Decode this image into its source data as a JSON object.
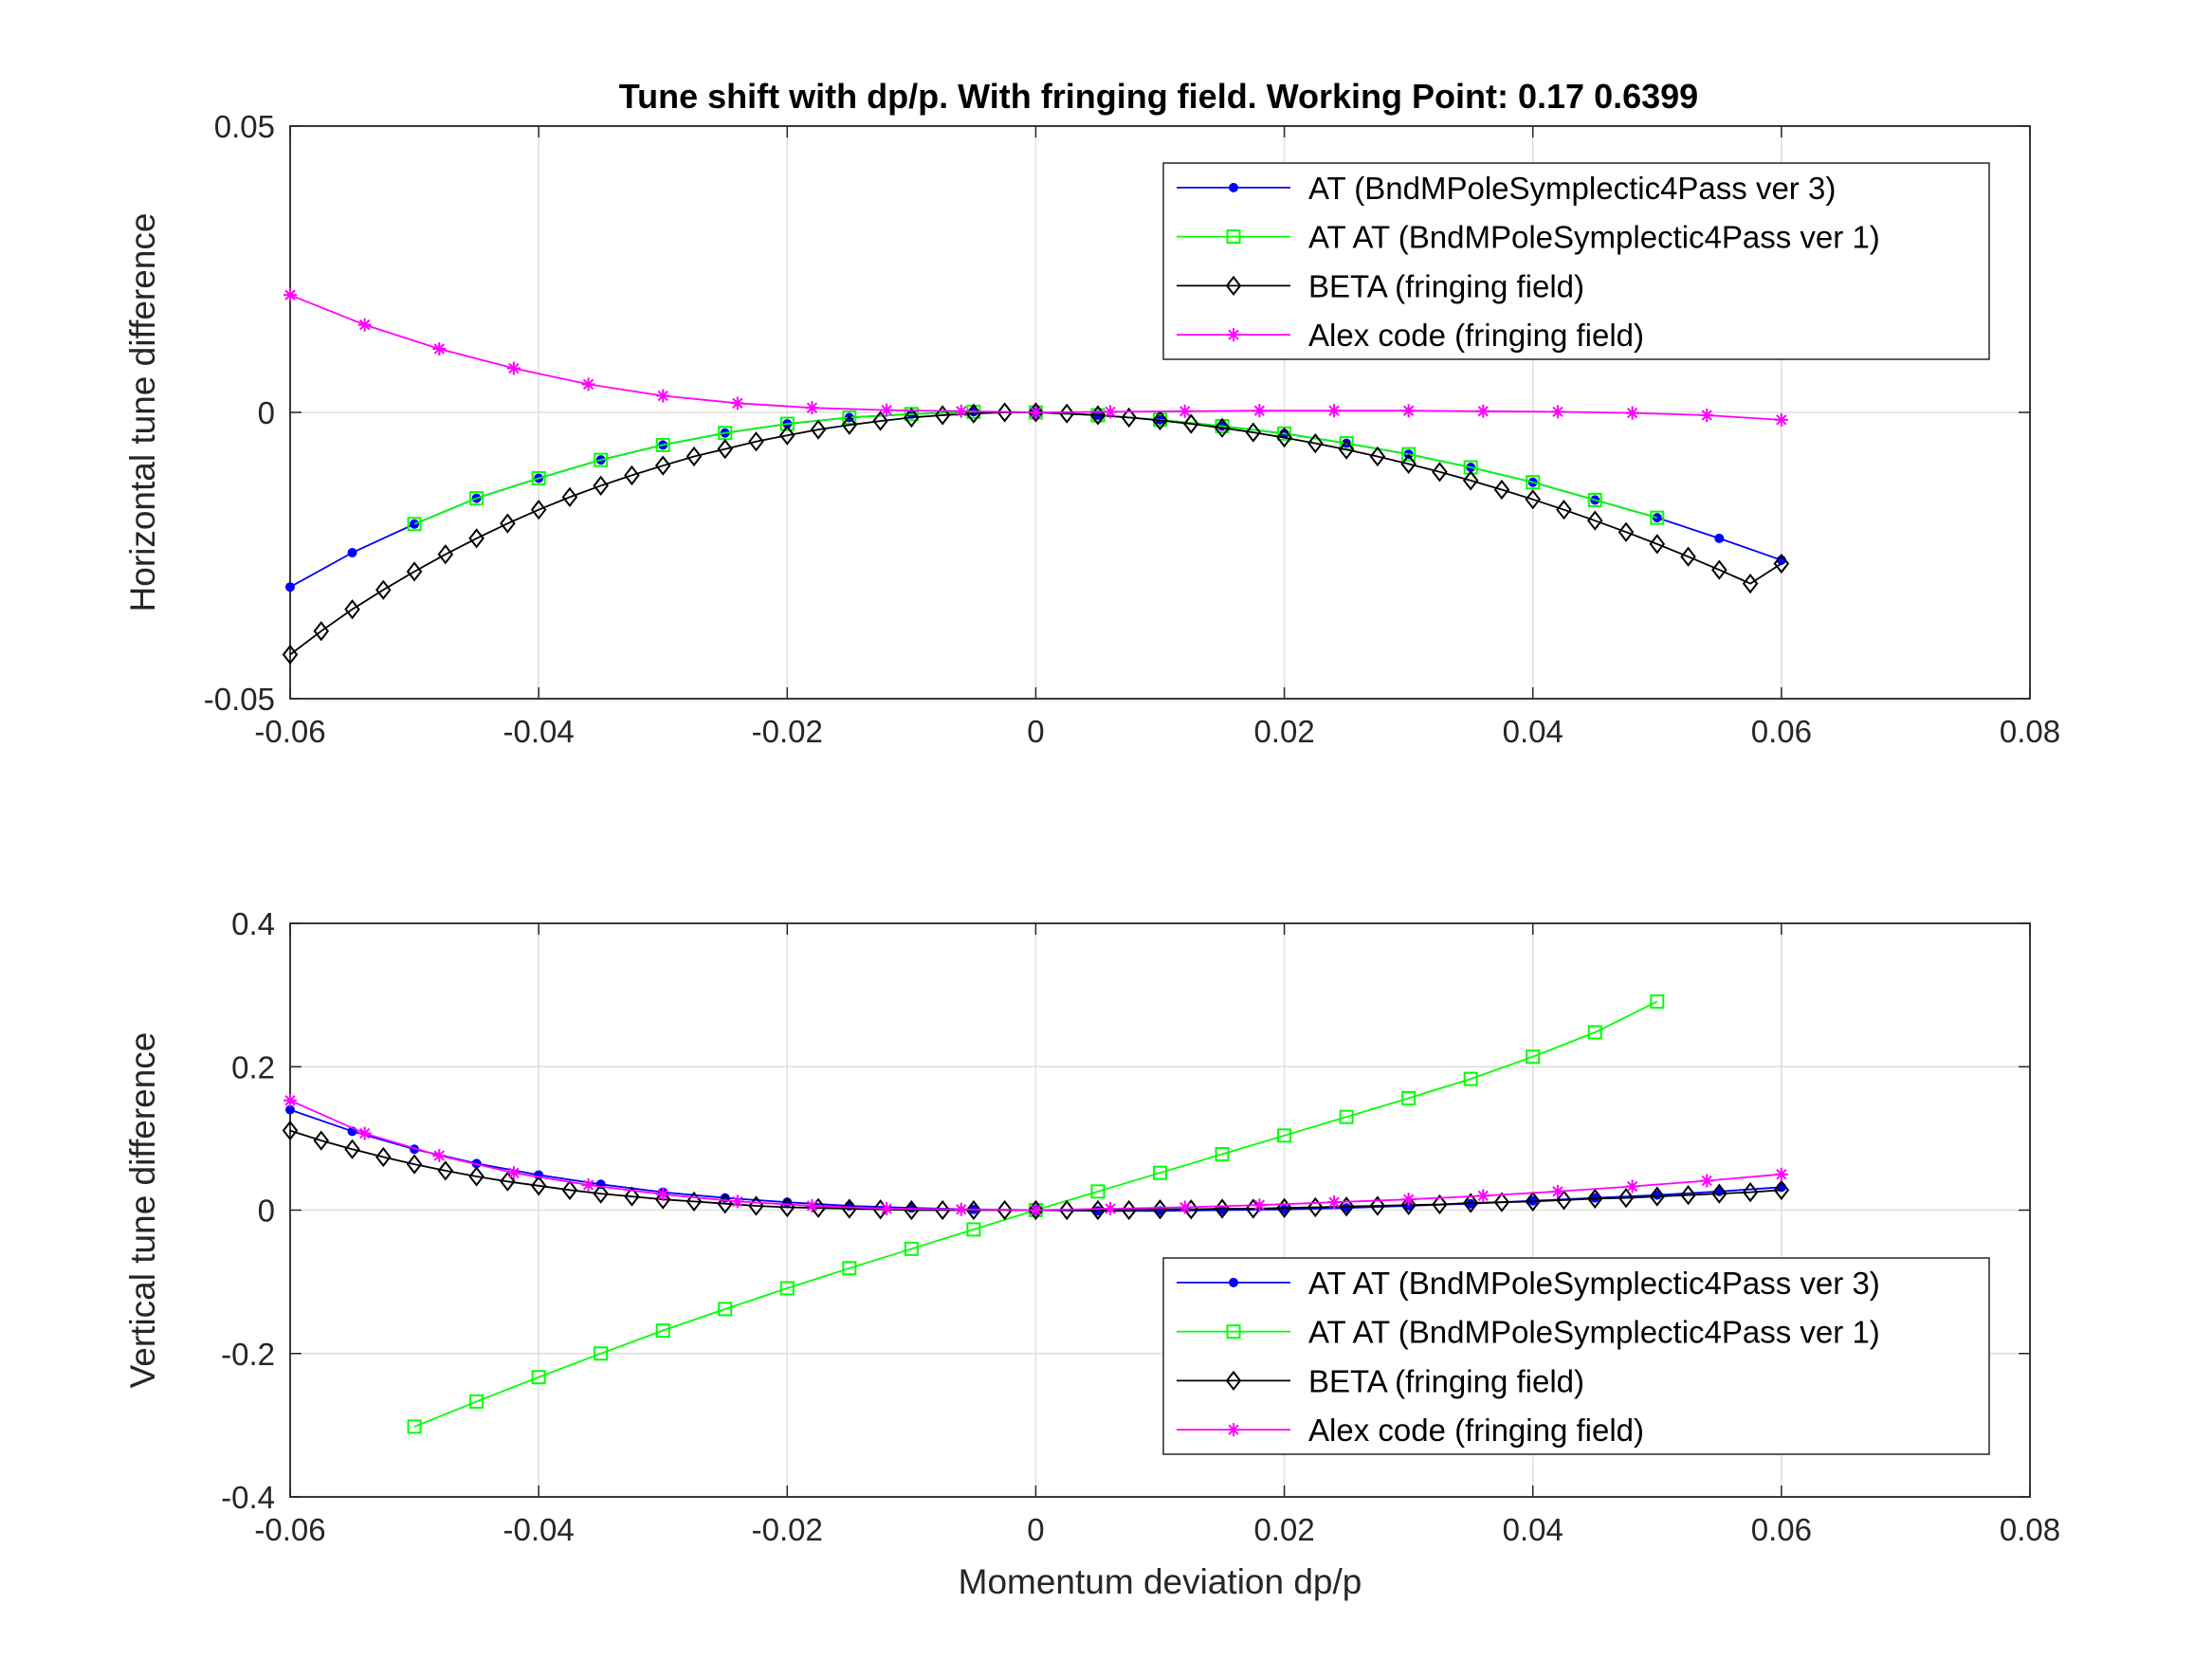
{
  "figure": {
    "title": "Tune shift with dp/p. With fringing field.  Working Point: 0.17       0.6399"
  },
  "chart_data": [
    {
      "type": "line",
      "xlabel": "",
      "ylabel": "Horizontal tune difference",
      "xlim": [
        -0.06,
        0.08
      ],
      "ylim": [
        -0.05,
        0.05
      ],
      "xticks": [
        "-0.06",
        "-0.04",
        "-0.02",
        "0",
        "0.02",
        "0.04",
        "0.06",
        "0.08"
      ],
      "yticks": [
        "-0.05",
        "0",
        "0.05"
      ],
      "grid": true,
      "legend_position": "top-right",
      "series": [
        {
          "name": "AT (BndMPoleSymplectic4Pass ver 3)",
          "color": "#0000ff",
          "marker": "dot",
          "x": [
            -0.06,
            -0.055,
            -0.05,
            -0.045,
            -0.04,
            -0.035,
            -0.03,
            -0.025,
            -0.02,
            -0.015,
            -0.01,
            -0.005,
            0,
            0.005,
            0.01,
            0.015,
            0.02,
            0.025,
            0.03,
            0.035,
            0.04,
            0.045,
            0.05,
            0.055,
            0.06
          ],
          "y": [
            -0.0305,
            -0.0245,
            -0.0195,
            -0.015,
            -0.0115,
            -0.0083,
            -0.0057,
            -0.0036,
            -0.002,
            -0.0009,
            -0.0003,
            0.0001,
            0,
            -0.0005,
            -0.0013,
            -0.0024,
            -0.0037,
            -0.0054,
            -0.0073,
            -0.0096,
            -0.0122,
            -0.0153,
            -0.0184,
            -0.022,
            -0.0258
          ]
        },
        {
          "name": "AT AT (BndMPoleSymplectic4Pass ver 1)",
          "color": "#00ff00",
          "marker": "square",
          "x": [
            -0.05,
            -0.045,
            -0.04,
            -0.035,
            -0.03,
            -0.025,
            -0.02,
            -0.015,
            -0.01,
            -0.005,
            0,
            0.005,
            0.01,
            0.015,
            0.02,
            0.025,
            0.03,
            0.035,
            0.04,
            0.045,
            0.05
          ],
          "y": [
            -0.0195,
            -0.015,
            -0.0115,
            -0.0083,
            -0.0057,
            -0.0036,
            -0.002,
            -0.0009,
            -0.0003,
            0.0001,
            0,
            -0.0005,
            -0.0013,
            -0.0024,
            -0.0037,
            -0.0054,
            -0.0073,
            -0.0096,
            -0.0122,
            -0.0153,
            -0.0184
          ]
        },
        {
          "name": "BETA (fringing field)",
          "color": "#000000",
          "marker": "diamond",
          "x": [
            -0.06,
            -0.0575,
            -0.055,
            -0.0525,
            -0.05,
            -0.0475,
            -0.045,
            -0.0425,
            -0.04,
            -0.0375,
            -0.035,
            -0.0325,
            -0.03,
            -0.0275,
            -0.025,
            -0.0225,
            -0.02,
            -0.0175,
            -0.015,
            -0.0125,
            -0.01,
            -0.0075,
            -0.005,
            -0.0025,
            0,
            0.0025,
            0.005,
            0.0075,
            0.01,
            0.0125,
            0.015,
            0.0175,
            0.02,
            0.0225,
            0.025,
            0.0275,
            0.03,
            0.0325,
            0.035,
            0.0375,
            0.04,
            0.0425,
            0.045,
            0.0475,
            0.05,
            0.0525,
            0.055,
            0.0575,
            0.06
          ],
          "y": [
            -0.0423,
            -0.0382,
            -0.0344,
            -0.031,
            -0.0278,
            -0.0248,
            -0.022,
            -0.0194,
            -0.017,
            -0.0148,
            -0.0128,
            -0.011,
            -0.0093,
            -0.0077,
            -0.0064,
            -0.0051,
            -0.004,
            -0.003,
            -0.0022,
            -0.0015,
            -0.0009,
            -0.0005,
            -0.0002,
            0,
            0,
            -0.0002,
            -0.0005,
            -0.0009,
            -0.0014,
            -0.002,
            -0.0027,
            -0.0035,
            -0.0044,
            -0.0054,
            -0.0065,
            -0.0077,
            -0.009,
            -0.0104,
            -0.0119,
            -0.0135,
            -0.0152,
            -0.017,
            -0.0189,
            -0.0209,
            -0.023,
            -0.0252,
            -0.0275,
            -0.0299,
            -0.0264
          ]
        },
        {
          "name": "Alex code (fringing field)",
          "color": "#ff00ff",
          "marker": "asterisk",
          "x": [
            -0.06,
            -0.054,
            -0.048,
            -0.042,
            -0.036,
            -0.03,
            -0.024,
            -0.018,
            -0.012,
            -0.006,
            0,
            0.006,
            0.012,
            0.018,
            0.024,
            0.03,
            0.036,
            0.042,
            0.048,
            0.054,
            0.06
          ],
          "y": [
            0.0205,
            0.0153,
            0.0111,
            0.0077,
            0.0049,
            0.0029,
            0.0016,
            0.0008,
            0.0004,
            0.0002,
            0,
            0.0001,
            0.0002,
            0.0003,
            0.0003,
            0.0003,
            0.0002,
            0.0001,
            -0.0001,
            -0.0005,
            -0.0013
          ]
        }
      ]
    },
    {
      "type": "line",
      "xlabel": "Momentum deviation dp/p",
      "ylabel": "Vertical tune difference",
      "xlim": [
        -0.06,
        0.08
      ],
      "ylim": [
        -0.4,
        0.4
      ],
      "xticks": [
        "-0.06",
        "-0.04",
        "-0.02",
        "0",
        "0.02",
        "0.04",
        "0.06",
        "0.08"
      ],
      "yticks": [
        "-0.4",
        "-0.2",
        "0",
        "0.2",
        "0.4"
      ],
      "grid": true,
      "legend_position": "bottom-right",
      "series": [
        {
          "name": "AT AT (BndMPoleSymplectic4Pass ver 3)",
          "color": "#0000ff",
          "marker": "dot",
          "x": [
            -0.06,
            -0.055,
            -0.05,
            -0.045,
            -0.04,
            -0.035,
            -0.03,
            -0.025,
            -0.02,
            -0.015,
            -0.01,
            -0.005,
            0,
            0.005,
            0.01,
            0.015,
            0.02,
            0.025,
            0.03,
            0.035,
            0.04,
            0.045,
            0.05,
            0.055,
            0.06
          ],
          "y": [
            0.14,
            0.11,
            0.085,
            0.065,
            0.049,
            0.036,
            0.025,
            0.017,
            0.011,
            0.006,
            0.003,
            0.001,
            0,
            -0.001,
            -0.001,
            0,
            0.001,
            0.003,
            0.006,
            0.009,
            0.013,
            0.017,
            0.021,
            0.026,
            0.032
          ]
        },
        {
          "name": "AT AT (BndMPoleSymplectic4Pass ver 1)",
          "color": "#00ff00",
          "marker": "square",
          "x": [
            -0.05,
            -0.045,
            -0.04,
            -0.035,
            -0.03,
            -0.025,
            -0.02,
            -0.015,
            -0.01,
            -0.005,
            0,
            0.005,
            0.01,
            0.015,
            0.02,
            0.025,
            0.03,
            0.035,
            0.04,
            0.045,
            0.05
          ],
          "y": [
            -0.302,
            -0.267,
            -0.233,
            -0.2,
            -0.168,
            -0.138,
            -0.109,
            -0.081,
            -0.054,
            -0.027,
            0,
            0.026,
            0.052,
            0.078,
            0.104,
            0.13,
            0.156,
            0.183,
            0.214,
            0.248,
            0.291
          ]
        },
        {
          "name": "BETA (fringing field)",
          "color": "#000000",
          "marker": "diamond",
          "x": [
            -0.06,
            -0.0575,
            -0.055,
            -0.0525,
            -0.05,
            -0.0475,
            -0.045,
            -0.0425,
            -0.04,
            -0.0375,
            -0.035,
            -0.0325,
            -0.03,
            -0.0275,
            -0.025,
            -0.0225,
            -0.02,
            -0.0175,
            -0.015,
            -0.0125,
            -0.01,
            -0.0075,
            -0.005,
            -0.0025,
            0,
            0.0025,
            0.005,
            0.0075,
            0.01,
            0.0125,
            0.015,
            0.0175,
            0.02,
            0.0225,
            0.025,
            0.0275,
            0.03,
            0.0325,
            0.035,
            0.0375,
            0.04,
            0.0425,
            0.045,
            0.0475,
            0.05,
            0.0525,
            0.055,
            0.0575,
            0.06
          ],
          "y": [
            0.111,
            0.097,
            0.085,
            0.074,
            0.064,
            0.055,
            0.047,
            0.04,
            0.034,
            0.028,
            0.023,
            0.019,
            0.015,
            0.012,
            0.009,
            0.006,
            0.004,
            0.003,
            0.002,
            0.001,
            0,
            0,
            0,
            0,
            0,
            0,
            0,
            0,
            0.001,
            0.001,
            0.002,
            0.002,
            0.003,
            0.004,
            0.005,
            0.006,
            0.007,
            0.008,
            0.01,
            0.011,
            0.012,
            0.014,
            0.016,
            0.017,
            0.019,
            0.021,
            0.023,
            0.025,
            0.028
          ]
        },
        {
          "name": "Alex code (fringing field)",
          "color": "#ff00ff",
          "marker": "asterisk",
          "x": [
            -0.06,
            -0.054,
            -0.048,
            -0.042,
            -0.036,
            -0.03,
            -0.024,
            -0.018,
            -0.012,
            -0.006,
            0,
            0.006,
            0.012,
            0.018,
            0.024,
            0.03,
            0.036,
            0.042,
            0.048,
            0.054,
            0.06
          ],
          "y": [
            0.153,
            0.107,
            0.076,
            0.052,
            0.035,
            0.022,
            0.012,
            0.006,
            0.002,
            0.001,
            0,
            0.002,
            0.004,
            0.007,
            0.011,
            0.015,
            0.02,
            0.026,
            0.033,
            0.041,
            0.05
          ]
        }
      ]
    }
  ]
}
